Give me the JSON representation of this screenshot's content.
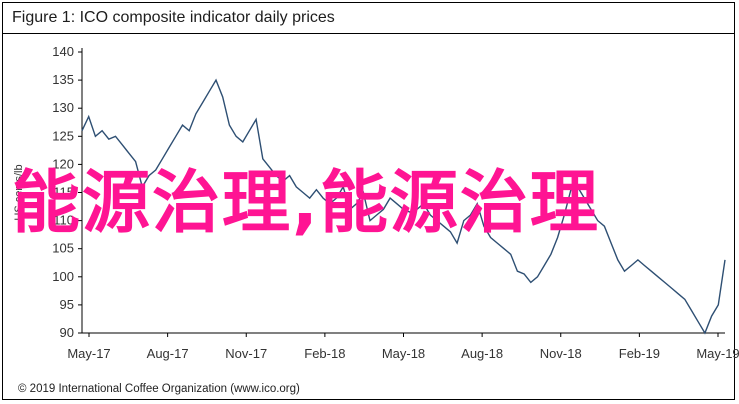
{
  "title": "Figure 1: ICO composite indicator daily prices",
  "footer": "© 2019 International Coffee Organization (www.ico.org)",
  "watermark": "能源治理,能源治理",
  "colors": {
    "line": "#2e4f73",
    "watermark": "#ff1493",
    "axis": "#000000"
  },
  "chart_data": {
    "type": "line",
    "title": "Figure 1: ICO composite indicator daily prices",
    "xlabel": "",
    "ylabel": "US cents/lb",
    "ylim": [
      90,
      140
    ],
    "yticks": [
      90,
      95,
      100,
      105,
      110,
      115,
      120,
      125,
      130,
      135,
      140
    ],
    "xticks": [
      "May-17",
      "Aug-17",
      "Nov-17",
      "Feb-18",
      "May-18",
      "Aug-18",
      "Nov-18",
      "Feb-19",
      "May-19"
    ],
    "grid": false,
    "series": [
      {
        "x": [
          0,
          1,
          2,
          3,
          4,
          5,
          6,
          7,
          8,
          9,
          10,
          11,
          12,
          13,
          14,
          15,
          16,
          17,
          18,
          19,
          20,
          21,
          22,
          23,
          24,
          25,
          26,
          27,
          28,
          29,
          30,
          31,
          32,
          33,
          34,
          35,
          36,
          37,
          38,
          39,
          40,
          41,
          42,
          43,
          44,
          45,
          46,
          47,
          48,
          49,
          50,
          51,
          52,
          53,
          54,
          55,
          56,
          57,
          58,
          59,
          60,
          61,
          62,
          63,
          64,
          65,
          66,
          67,
          68,
          69,
          70,
          71,
          72,
          73,
          74,
          75,
          76,
          77,
          78,
          79,
          80,
          81,
          82,
          83,
          84,
          85,
          86,
          87,
          88,
          89,
          90,
          91,
          92,
          93,
          94,
          95,
          96
        ],
        "values": [
          126,
          128.5,
          125,
          126,
          124.5,
          125,
          123.5,
          122,
          120.5,
          116,
          118,
          119,
          121,
          123,
          125,
          127,
          126,
          129,
          131,
          133,
          135,
          132,
          127,
          125,
          124,
          126,
          128,
          121,
          119.5,
          118,
          117,
          118,
          116,
          115,
          114,
          115.5,
          114,
          113,
          114,
          116,
          112,
          113,
          115,
          110,
          111,
          112,
          114,
          113,
          112,
          111.5,
          112,
          113,
          111,
          110,
          109,
          108,
          106,
          110,
          111,
          113,
          109,
          107,
          106,
          105,
          104,
          101,
          100.5,
          99,
          100,
          102,
          104,
          107,
          111,
          115.5,
          116,
          114,
          112,
          110,
          109,
          106,
          103,
          101,
          102,
          103,
          102,
          101,
          100,
          99,
          98,
          97,
          96,
          94,
          92,
          90,
          93,
          95,
          103
        ]
      }
    ]
  }
}
